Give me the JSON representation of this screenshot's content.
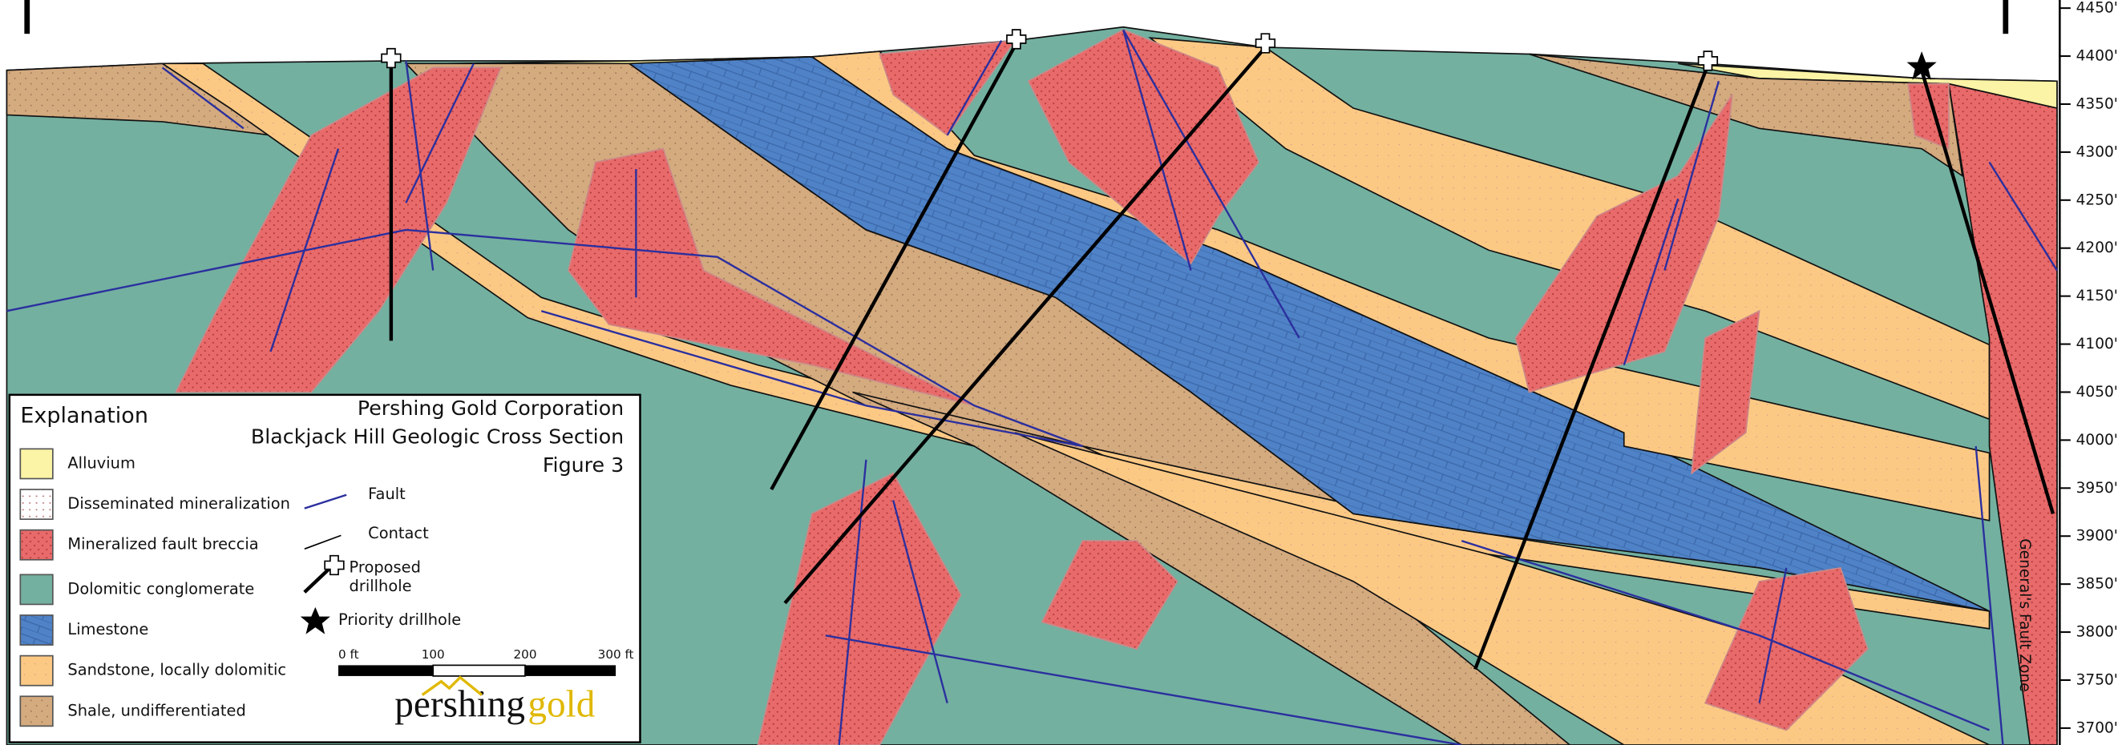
{
  "legend": {
    "title": "Explanation",
    "items": [
      "Alluvium",
      "Disseminated mineralization",
      "Mineralized fault breccia",
      "Dolomitic conglomerate",
      "Limestone",
      "Sandstone, locally dolomitic",
      "Shale, undifferentiated"
    ],
    "fault": "Fault",
    "contact": "Contact",
    "proposed": [
      "Proposed",
      "drillhole"
    ],
    "priority": "Priority drillhole"
  },
  "header": {
    "lines": [
      "Pershing Gold Corporation",
      "Blackjack Hill Geologic Cross Section",
      "Figure 3"
    ]
  },
  "scale_bar": [
    "0 ft",
    "100",
    "200",
    "300 ft"
  ],
  "logo": {
    "left": "pershing",
    "right": "gold"
  },
  "elevation_axis": [
    "4450'",
    "4400'",
    "4350'",
    "4300'",
    "4250'",
    "4200'",
    "4150'",
    "4100'",
    "4050'",
    "4000'",
    "3950'",
    "3900'",
    "3850'",
    "3800'",
    "3750'",
    "3700'"
  ],
  "fault_zone_label": "General's Fault Zone"
}
